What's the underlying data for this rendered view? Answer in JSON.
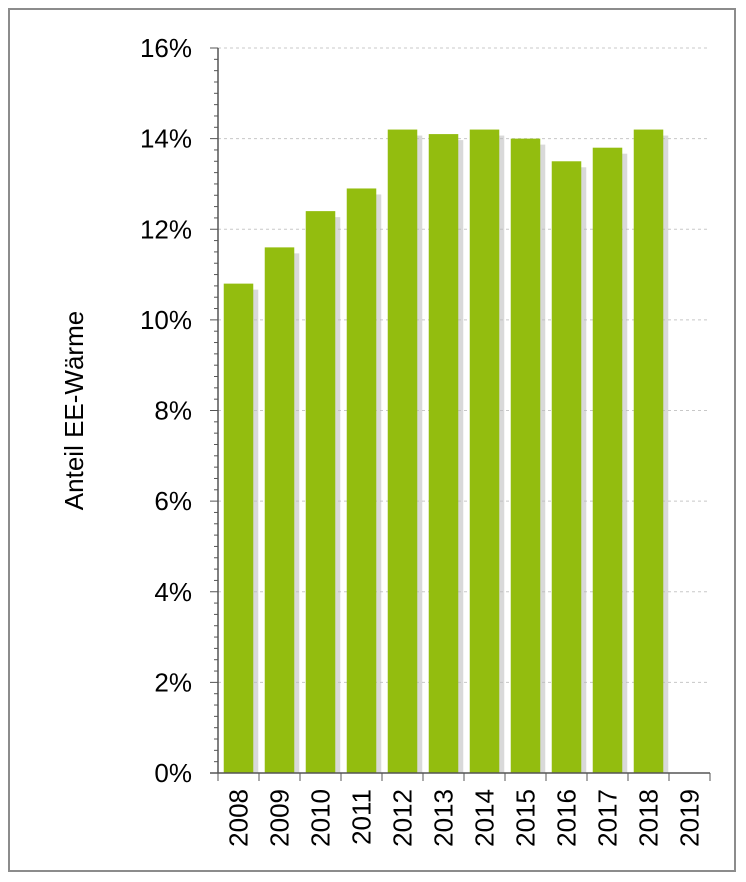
{
  "chart_data": {
    "type": "bar",
    "title": "",
    "xlabel": "",
    "ylabel": "Anteil EE-Wärme",
    "categories": [
      "2008",
      "2009",
      "2010",
      "2011",
      "2012",
      "2013",
      "2014",
      "2015",
      "2016",
      "2017",
      "2018",
      "2019"
    ],
    "series": [
      {
        "values": [
          10.8,
          11.6,
          12.4,
          12.9,
          14.2,
          14.1,
          14.2,
          14.0,
          13.5,
          13.8,
          14.2,
          null
        ]
      }
    ],
    "ylim": [
      0,
      16
    ],
    "yticks": [
      0,
      2,
      4,
      6,
      8,
      10,
      12,
      14,
      16
    ],
    "ytick_labels": [
      "0%",
      "2%",
      "4%",
      "6%",
      "8%",
      "10%",
      "12%",
      "14%",
      "16%"
    ],
    "grid": "horizontal dashed",
    "legend": "none",
    "colors": {
      "bar": "#93bd0f",
      "bar_shadow": "#b9b9b9",
      "grid": "#c8c8c8",
      "axis": "#555555",
      "frame": "#8c8c8c"
    }
  }
}
